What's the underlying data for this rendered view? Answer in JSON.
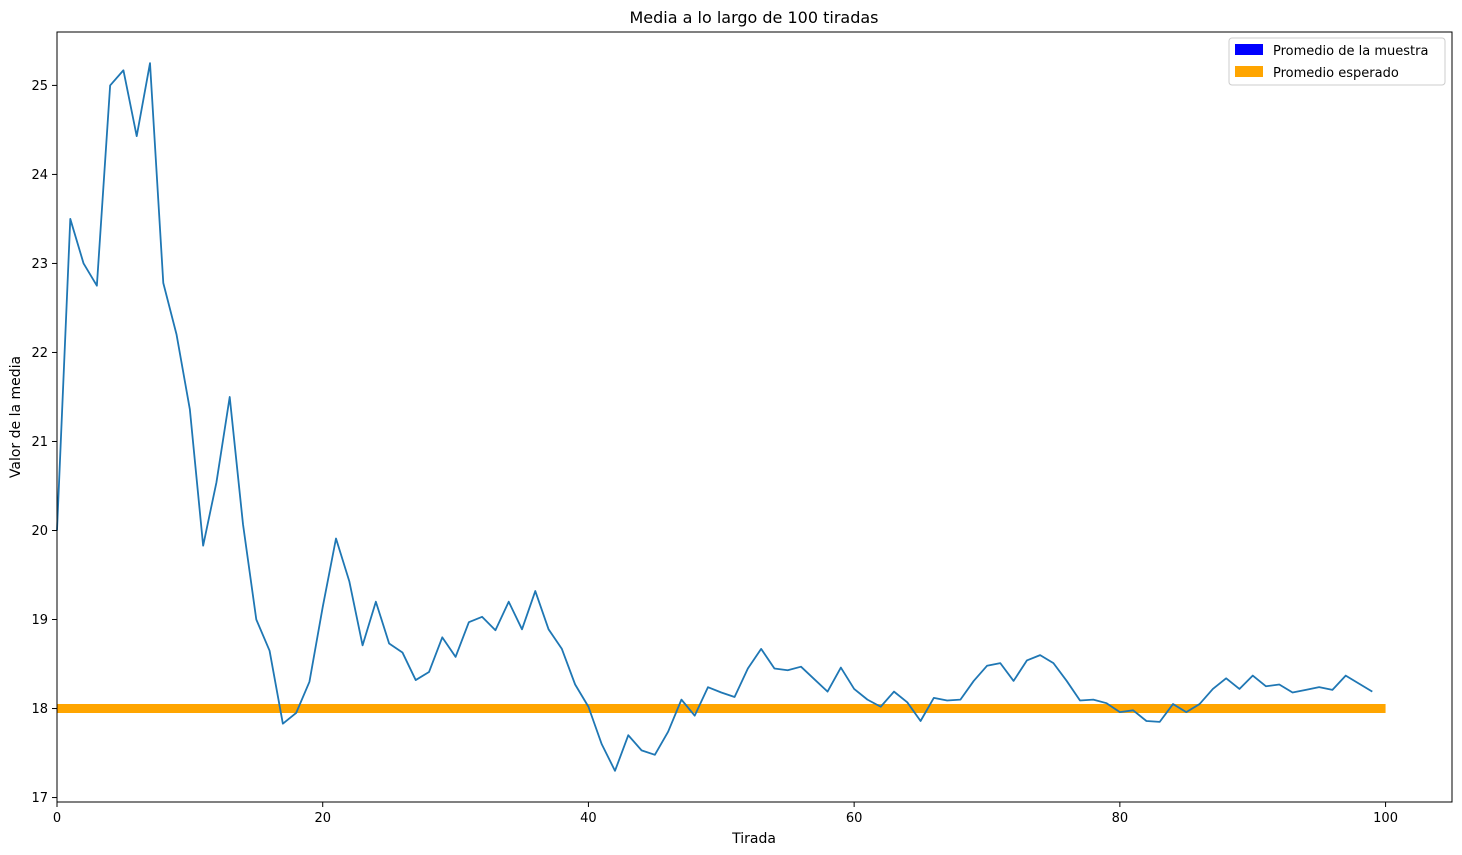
{
  "chart_data": {
    "type": "line",
    "title": "Media a lo largo de 100 tiradas",
    "xlabel": "Tirada",
    "ylabel": "Valor de la media",
    "xlim": [
      0,
      105
    ],
    "ylim": [
      16.95,
      25.6
    ],
    "xticks": [
      0,
      20,
      40,
      60,
      80,
      100
    ],
    "yticks": [
      17,
      18,
      19,
      20,
      21,
      22,
      23,
      24,
      25
    ],
    "grid": false,
    "legend_position": "top-right",
    "legend": [
      {
        "label": "Promedio de la muestra",
        "color": "#0000ff"
      },
      {
        "label": "Promedio esperado",
        "color": "#ffa500"
      }
    ],
    "series": [
      {
        "color": "#1f77b4",
        "x": [
          0,
          1,
          2,
          3,
          4,
          5,
          6,
          7,
          8,
          9,
          10,
          11,
          12,
          13,
          14,
          15,
          16,
          17,
          18,
          19,
          20,
          21,
          22,
          23,
          24,
          25,
          26,
          27,
          28,
          29,
          30,
          31,
          32,
          33,
          34,
          35,
          36,
          37,
          38,
          39,
          40,
          41,
          42,
          43,
          44,
          45,
          46,
          47,
          48,
          49,
          50,
          51,
          52,
          53,
          54,
          55,
          56,
          57,
          58,
          59,
          60,
          61,
          62,
          63,
          64,
          65,
          66,
          67,
          68,
          69,
          70,
          71,
          72,
          73,
          74,
          75,
          76,
          77,
          78,
          79,
          80,
          81,
          82,
          83,
          84,
          85,
          86,
          87,
          88,
          89,
          90,
          91,
          92,
          93,
          94,
          95,
          96,
          97,
          98,
          99
        ],
        "y": [
          20.0,
          23.5,
          23.0,
          22.75,
          25.0,
          25.17,
          24.43,
          25.25,
          22.78,
          22.2,
          21.36,
          19.83,
          20.54,
          21.5,
          20.07,
          19.0,
          18.65,
          17.83,
          17.95,
          18.3,
          19.14,
          19.91,
          19.43,
          18.71,
          19.2,
          18.73,
          18.63,
          18.32,
          18.41,
          18.8,
          18.58,
          18.97,
          19.03,
          18.88,
          19.2,
          18.89,
          19.32,
          18.89,
          18.67,
          18.27,
          18.02,
          17.6,
          17.3,
          17.7,
          17.53,
          17.48,
          17.74,
          18.1,
          17.92,
          18.24,
          18.18,
          18.13,
          18.45,
          18.67,
          18.45,
          18.43,
          18.47,
          18.33,
          18.19,
          18.46,
          18.22,
          18.1,
          18.02,
          18.19,
          18.07,
          17.86,
          18.12,
          18.09,
          18.1,
          18.31,
          18.48,
          18.51,
          18.31,
          18.54,
          18.6,
          18.51,
          18.31,
          18.09,
          18.1,
          18.06,
          17.96,
          17.98,
          17.86,
          17.85,
          18.05,
          17.96,
          18.05,
          18.22,
          18.34,
          18.22,
          18.37,
          18.25,
          18.27,
          18.18,
          18.21,
          18.24,
          18.21,
          18.37,
          18.28,
          18.19
        ]
      },
      {
        "color": "#ffa500",
        "x": [
          0,
          100
        ],
        "y": [
          18.0,
          18.0
        ]
      }
    ]
  }
}
